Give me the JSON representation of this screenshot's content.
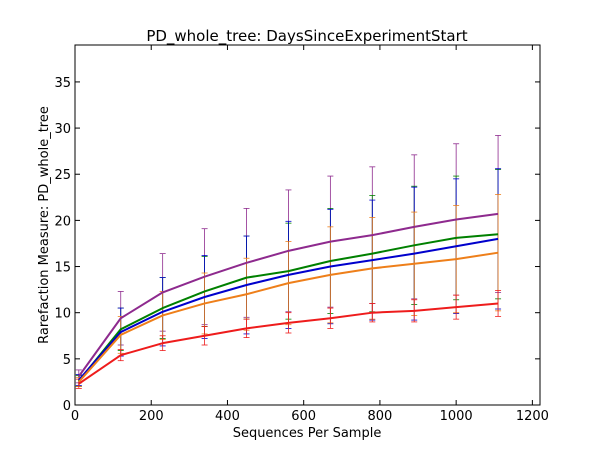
{
  "chart_data": {
    "type": "line",
    "title": "PD_whole_tree: DaysSinceExperimentStart",
    "xlabel": "Sequences Per Sample",
    "ylabel": "Rarefaction Measure: PD_whole_tree",
    "xlim": [
      0,
      1220
    ],
    "ylim": [
      0,
      39
    ],
    "x_ticks": [
      0,
      200,
      400,
      600,
      800,
      1000,
      1200
    ],
    "y_ticks": [
      0,
      5,
      10,
      15,
      20,
      25,
      30,
      35
    ],
    "grid": false,
    "legend": "none",
    "x": [
      10,
      120,
      230,
      340,
      450,
      560,
      670,
      780,
      890,
      1000,
      1110
    ],
    "series": [
      {
        "color": "#8e2a8e",
        "values": [
          3.1,
          9.4,
          12.2,
          13.9,
          15.4,
          16.7,
          17.7,
          18.4,
          19.3,
          20.1,
          20.7
        ],
        "errors": [
          0.7,
          2.9,
          4.2,
          5.2,
          5.9,
          6.6,
          7.1,
          7.4,
          7.8,
          8.2,
          8.5
        ]
      },
      {
        "color": "#008000",
        "values": [
          2.6,
          8.2,
          10.5,
          12.3,
          13.8,
          14.5,
          15.6,
          16.4,
          17.3,
          18.1,
          18.5
        ],
        "errors": [
          0.6,
          2.3,
          3.3,
          3.8,
          4.5,
          5.2,
          5.7,
          6.3,
          6.4,
          6.7,
          7.0
        ]
      },
      {
        "color": "#0000cc",
        "values": [
          2.7,
          7.9,
          10.1,
          11.7,
          13.0,
          14.1,
          15.0,
          15.7,
          16.4,
          17.2,
          18.0
        ],
        "errors": [
          0.6,
          2.6,
          3.7,
          4.5,
          5.3,
          5.8,
          6.2,
          6.5,
          7.2,
          7.3,
          7.6
        ]
      },
      {
        "color": "#ee7f1a",
        "values": [
          2.5,
          7.6,
          9.7,
          11.0,
          12.0,
          13.2,
          14.1,
          14.8,
          15.3,
          15.8,
          16.5
        ],
        "errors": [
          0.5,
          2.0,
          2.6,
          3.3,
          3.9,
          4.5,
          5.2,
          5.5,
          5.6,
          5.8,
          6.3
        ]
      },
      {
        "color": "#ee1c1c",
        "values": [
          2.3,
          5.4,
          6.7,
          7.5,
          8.3,
          8.9,
          9.4,
          10.0,
          10.2,
          10.6,
          11.0
        ],
        "errors": [
          0.5,
          0.6,
          0.8,
          1.0,
          1.0,
          1.1,
          1.1,
          1.0,
          1.2,
          1.3,
          1.4
        ]
      }
    ]
  }
}
